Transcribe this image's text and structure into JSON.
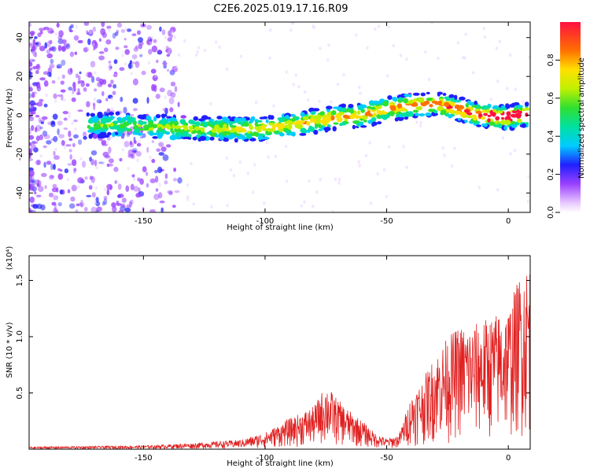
{
  "title": "C2E6.2025.019.17.16.R09",
  "chart_data": [
    {
      "type": "heatmap",
      "xlabel": "Height of straight line (km)",
      "ylabel": "Frequency (Hz)",
      "xlim": [
        -197,
        9
      ],
      "ylim": [
        -50,
        48
      ],
      "x_ticks": [
        -150,
        -100,
        -50,
        0
      ],
      "y_ticks": [
        -40,
        -20,
        0,
        20,
        40
      ],
      "colorbar": {
        "label": "Normalized spectral amplitude",
        "range": [
          0.0,
          1.0
        ],
        "ticks": [
          "0.0",
          "0.2",
          "0.4",
          "0.6",
          "0.8"
        ]
      },
      "ridge": {
        "x": [
          -173,
          -160,
          -150,
          -140,
          -130,
          -120,
          -110,
          -100,
          -90,
          -80,
          -70,
          -60,
          -50,
          -40,
          -30,
          -20,
          -15,
          -10,
          -5,
          0,
          5,
          8
        ],
        "frequency": [
          -5,
          -5,
          -6,
          -6,
          -7,
          -7,
          -7,
          -7,
          -5,
          -3,
          -1,
          0,
          3,
          5,
          6,
          3,
          1,
          0,
          -1,
          -1,
          0,
          0
        ]
      }
    },
    {
      "type": "line",
      "xlabel": "Height of straight line (km)",
      "ylabel": "SNR (10 * v/v)",
      "y_multiplier": "(x10⁴)",
      "xlim": [
        -197,
        9
      ],
      "ylim": [
        0,
        1.72
      ],
      "x_ticks": [
        -150,
        -100,
        -50,
        0
      ],
      "y_ticks": [
        "0.5",
        "1.0",
        "1.5"
      ],
      "series": [
        {
          "color": "#e02020",
          "envelope_x": [
            -197,
            -150,
            -130,
            -110,
            -100,
            -90,
            -80,
            -75,
            -70,
            -65,
            -60,
            -55,
            -50,
            -45,
            -40,
            -35,
            -30,
            -25,
            -20,
            -15,
            -10,
            -5,
            0,
            5,
            9
          ],
          "envelope_y": [
            0.02,
            0.03,
            0.05,
            0.08,
            0.14,
            0.26,
            0.36,
            0.55,
            0.42,
            0.32,
            0.24,
            0.14,
            0.09,
            0.12,
            0.45,
            0.6,
            0.8,
            0.95,
            1.05,
            1.05,
            1.1,
            1.15,
            1.2,
            1.5,
            1.6
          ]
        }
      ]
    }
  ]
}
